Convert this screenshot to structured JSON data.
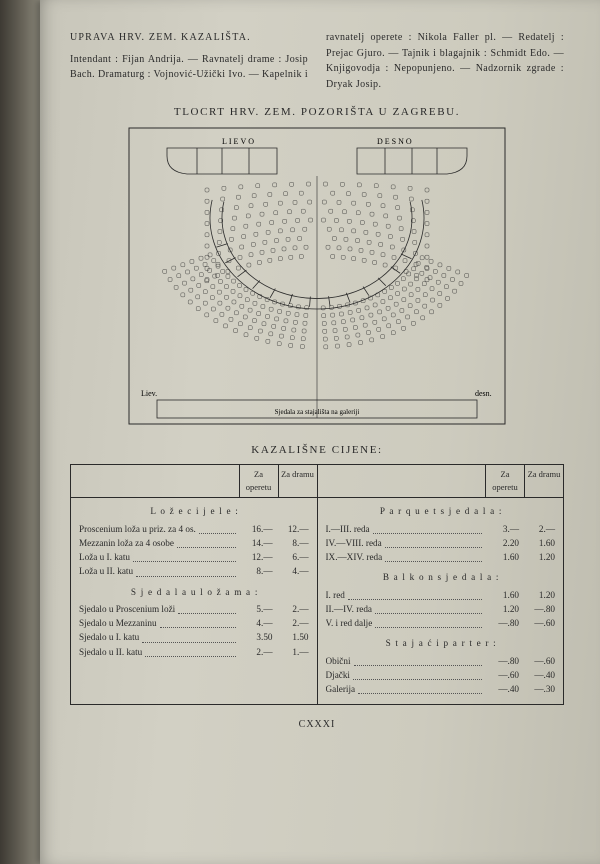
{
  "header": {
    "title": "UPRAVA HRV. ZEM. KAZALIŠTA.",
    "body": "Intendant : Fijan Andrija. — Ravnatelj drame : Josip Bach. Dramaturg : Vojnović-Užički Ivo. — Kapelnik i ravnatelj operete : Nikola Faller pl. — Redatelj : Prejac Gjuro. — Tajnik i blagajnik : Schmidt Edo. — Knjigovodja : Nepopunjeno. — Nadzornik zgrade : Dryak Josip."
  },
  "floorplan": {
    "title": "TLOCRT HRV. ZEM. POZORIŠTA U ZAGREBU.",
    "labels": {
      "left": "LIEVO",
      "right": "DESNO",
      "leftSide": "Liev.",
      "rightSide": "desn.",
      "caption": "Sjedala za stajališta na galeriji"
    },
    "colors": {
      "line": "#2a2a2a",
      "seat": "#cdcbbe",
      "seatStroke": "#2a2a2a"
    }
  },
  "prices": {
    "title": "KAZALIŠNE CIJENE:",
    "headers": {
      "operetu": "Za operetu",
      "dramu": "Za dramu"
    },
    "left": {
      "groups": [
        {
          "head": "L o ž e  c i j e l e :",
          "rows": [
            {
              "l": "Proscenium loža u priz. za 4 os.",
              "a": "16.—",
              "b": "12.—"
            },
            {
              "l": "Mezzanin loža za 4 osobe",
              "a": "14.—",
              "b": "8.—"
            },
            {
              "l": "Loža u I. katu",
              "a": "12.—",
              "b": "6.—"
            },
            {
              "l": "Loža u II. katu",
              "a": "8.—",
              "b": "4.—"
            }
          ]
        },
        {
          "head": "S j e d a l a  u  l o ž a m a :",
          "rows": [
            {
              "l": "Sjedalo u Proscenium loži",
              "a": "5.—",
              "b": "2.—"
            },
            {
              "l": "Sjedalo u Mezzaninu",
              "a": "4.—",
              "b": "2.—"
            },
            {
              "l": "Sjedalo u I. katu",
              "a": "3.50",
              "b": "1.50"
            },
            {
              "l": "Sjedalo u II. katu",
              "a": "2.—",
              "b": "1.—"
            }
          ]
        }
      ]
    },
    "right": {
      "groups": [
        {
          "head": "P a r q u e t  s j e d a l a :",
          "rows": [
            {
              "l": "I.—III. reda",
              "a": "3.—",
              "b": "2.—"
            },
            {
              "l": "IV.—VIII. reda",
              "a": "2.20",
              "b": "1.60"
            },
            {
              "l": "IX.—XIV. reda",
              "a": "1.60",
              "b": "1.20"
            }
          ]
        },
        {
          "head": "B a l k o n  s j e d a l a :",
          "rows": [
            {
              "l": "I. red",
              "a": "1.60",
              "b": "1.20"
            },
            {
              "l": "II.—IV. reda",
              "a": "1.20",
              "b": "—.80"
            },
            {
              "l": "V. i red dalje",
              "a": "—.80",
              "b": "—.60"
            }
          ]
        },
        {
          "head": "S t a j a ć i  p a r t e r :",
          "rows": [
            {
              "l": "Obični",
              "a": "—.80",
              "b": "—.60"
            },
            {
              "l": "Djački",
              "a": "—.60",
              "b": "—.40"
            },
            {
              "l": "Galerija",
              "a": "—.40",
              "b": "—.30"
            }
          ]
        }
      ]
    }
  },
  "pagenum": "CXXXI"
}
